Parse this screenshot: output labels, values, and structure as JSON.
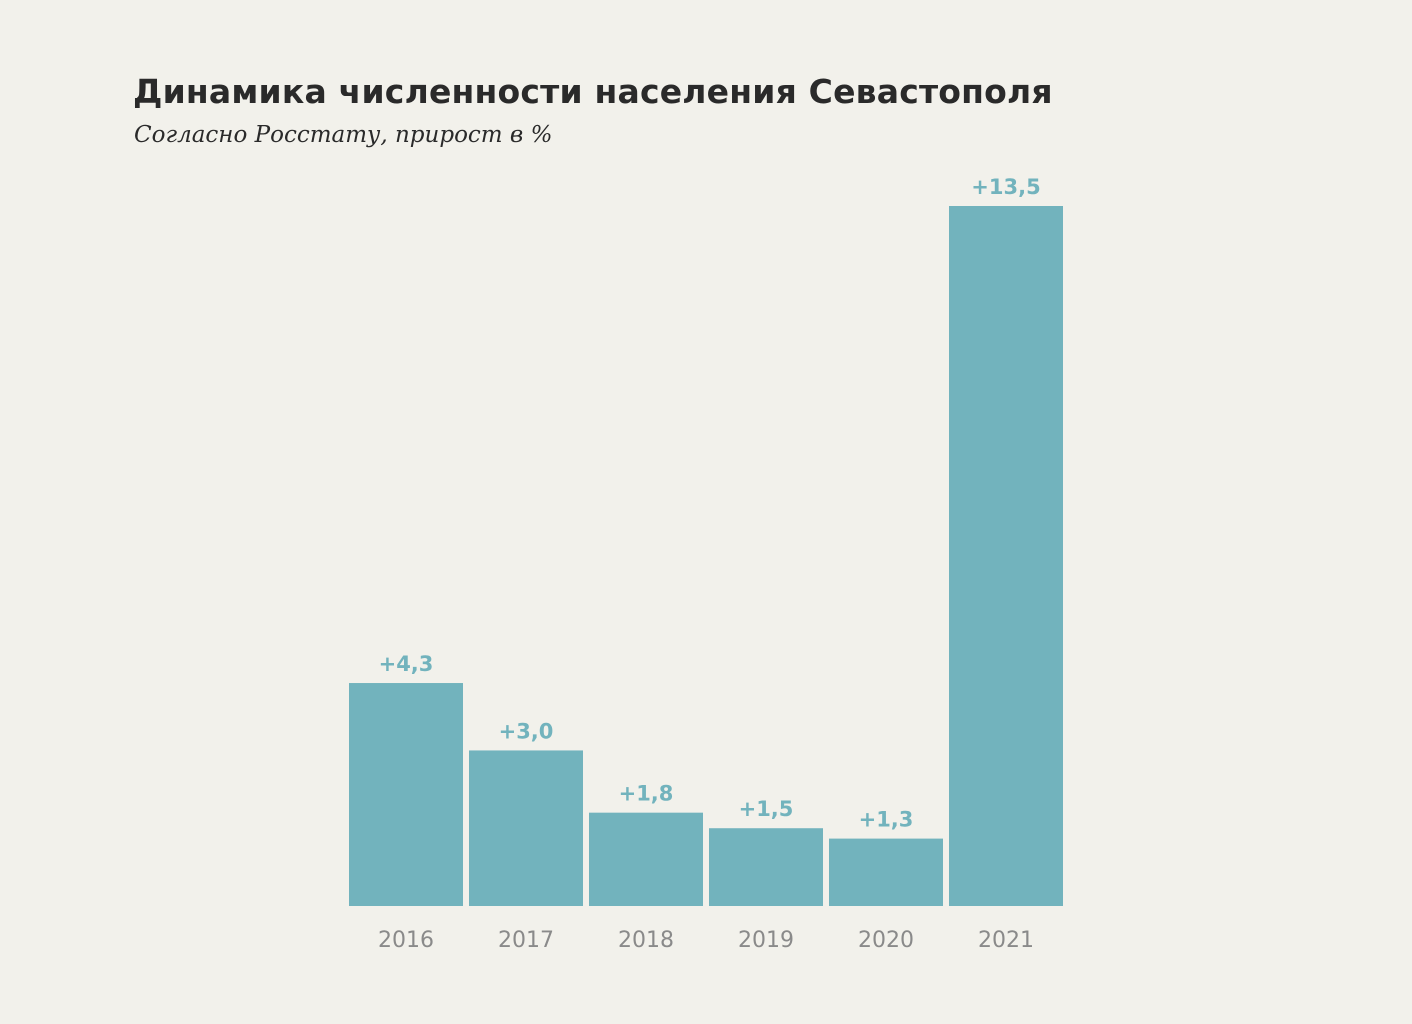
{
  "chart_data": {
    "type": "bar",
    "title": "Динамика численности населения Севастополя",
    "subtitle": "Согласно Росстату, прирост в %",
    "categories": [
      "2016",
      "2017",
      "2018",
      "2019",
      "2020",
      "2021"
    ],
    "values": [
      4.3,
      3.0,
      1.8,
      1.5,
      1.3,
      13.5
    ],
    "data_labels": [
      "+4,3",
      "+3,0",
      "+1,8",
      "+1,5",
      "+1,3",
      "+13,5"
    ],
    "ylim": [
      0,
      13.5
    ],
    "grid": false,
    "legend": false,
    "colors": {
      "bar": "#72b3bd",
      "value_label": "#72b3bd",
      "tick_label": "#8a8a8a",
      "title": "#2a2a2a",
      "background": "#f2f1eb"
    }
  }
}
